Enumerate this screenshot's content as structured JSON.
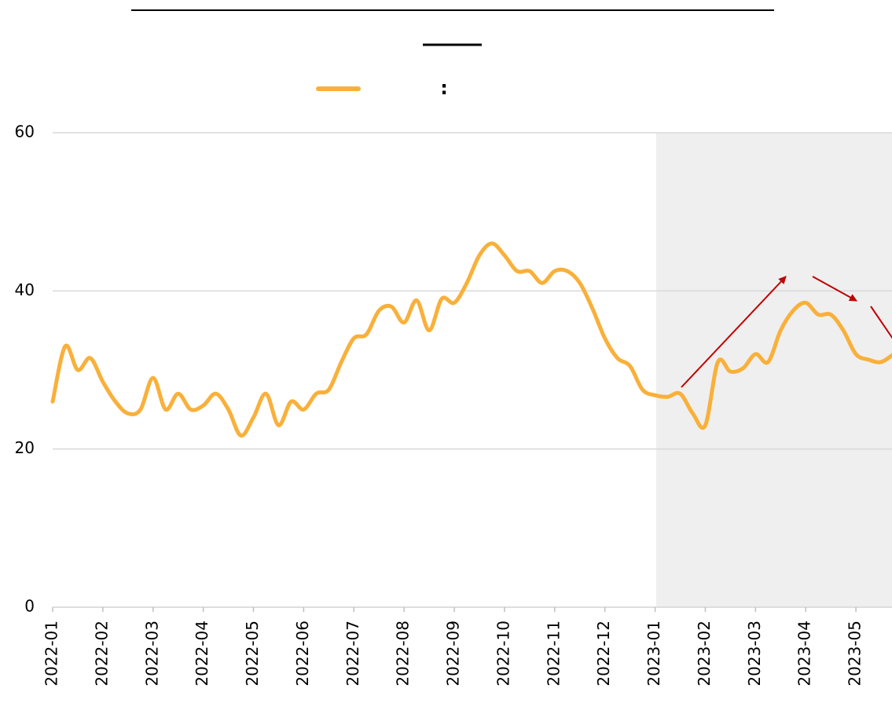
{
  "chart_data": {
    "type": "line",
    "categories": [
      "2022-01",
      null,
      null,
      null,
      "2022-02",
      null,
      null,
      null,
      "2022-03",
      null,
      null,
      null,
      "2022-04",
      null,
      null,
      null,
      "2022-05",
      null,
      null,
      null,
      "2022-06",
      null,
      null,
      null,
      "2022-07",
      null,
      null,
      null,
      "2022-08",
      null,
      null,
      null,
      "2022-09",
      null,
      null,
      null,
      "2022-10",
      null,
      null,
      null,
      "2022-11",
      null,
      null,
      null,
      "2022-12",
      null,
      null,
      null,
      "2023-01",
      null,
      null,
      null,
      "2023-02",
      null,
      null,
      null,
      "2023-03",
      null,
      null,
      null,
      "2023-04",
      null,
      null,
      null,
      "2023-05",
      null,
      null,
      null
    ],
    "series": [
      {
        "name": ":",
        "color": "#f9b03a",
        "values": [
          26,
          33,
          30,
          31.5,
          28.5,
          26,
          24.5,
          25,
          29,
          25,
          27,
          25,
          25.5,
          27,
          25,
          21.7,
          24,
          27,
          23,
          26,
          25,
          27,
          27.5,
          31,
          34,
          34.5,
          37.5,
          38,
          36,
          38.8,
          35,
          39,
          38.5,
          41,
          44.5,
          46,
          44.5,
          42.5,
          42.5,
          41,
          42.5,
          42.5,
          41,
          37.8,
          34,
          31.5,
          30.5,
          27.5,
          26.8,
          26.6,
          27,
          24.5,
          23,
          31,
          29.8,
          30.2,
          32,
          31,
          35,
          37.5,
          38.5,
          37,
          37,
          35,
          32,
          31.3,
          31,
          32
        ]
      }
    ],
    "ylim": [
      0,
      60
    ],
    "yticks": [
      0,
      20,
      40,
      60
    ],
    "grid": true
  }
}
